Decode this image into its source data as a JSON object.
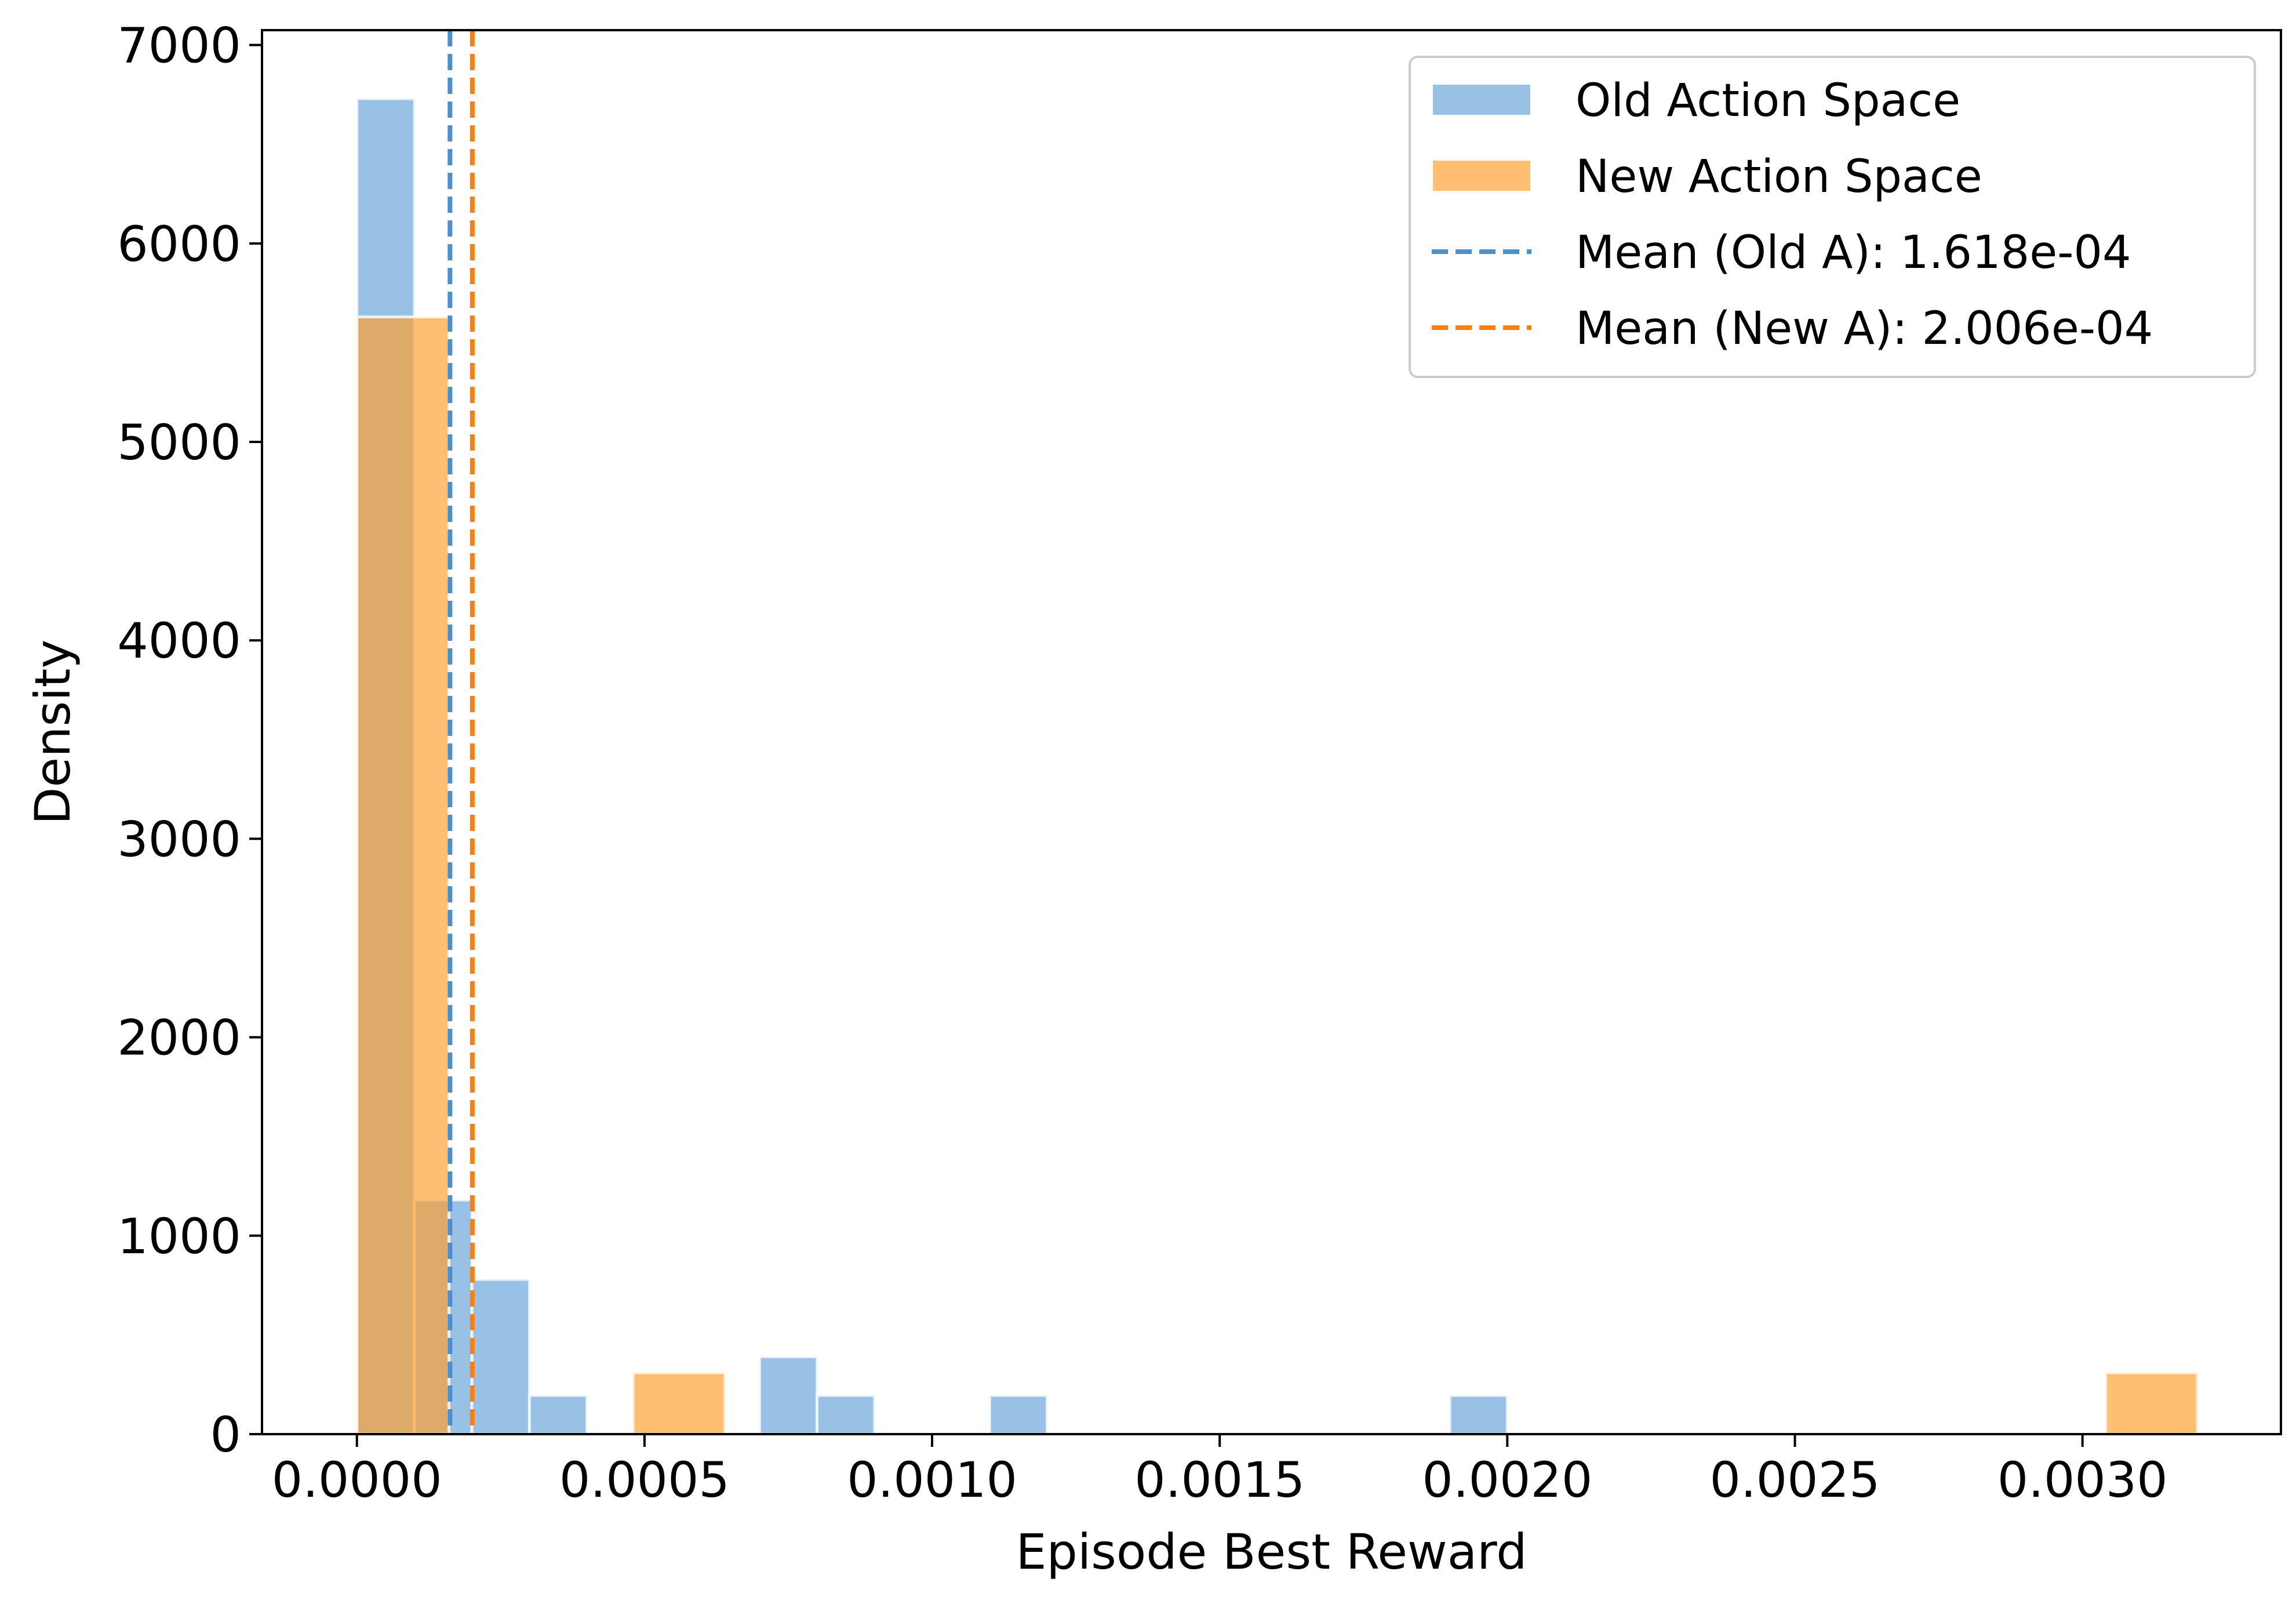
{
  "chart_data": {
    "type": "bar",
    "title": "",
    "xlabel": "Episode Best Reward",
    "ylabel": "Density",
    "xlim": [
      -0.000165,
      0.003345
    ],
    "ylim": [
      0,
      7075
    ],
    "xticks": [
      0.0,
      0.0005,
      0.001,
      0.0015,
      0.002,
      0.0025,
      0.003
    ],
    "xtick_labels": [
      "0.0000",
      "0.0005",
      "0.0010",
      "0.0015",
      "0.0020",
      "0.0025",
      "0.0030"
    ],
    "yticks": [
      0,
      1000,
      2000,
      3000,
      4000,
      5000,
      6000,
      7000
    ],
    "ytick_labels": [
      "0",
      "1000",
      "2000",
      "3000",
      "4000",
      "5000",
      "6000",
      "7000"
    ],
    "grid": false,
    "legend_position": "top-right",
    "series": [
      {
        "name": "Old Action Space",
        "color": "#5b9bd5",
        "bins": [
          {
            "x0": 0.0,
            "x1": 0.0001,
            "density": 6730
          },
          {
            "x0": 0.0001,
            "x1": 0.0002,
            "density": 1180
          },
          {
            "x0": 0.0002,
            "x1": 0.0003,
            "density": 780
          },
          {
            "x0": 0.0003,
            "x1": 0.0004,
            "density": 195
          },
          {
            "x0": 0.0007,
            "x1": 0.0008,
            "density": 390
          },
          {
            "x0": 0.0008,
            "x1": 0.0009,
            "density": 195
          },
          {
            "x0": 0.0011,
            "x1": 0.0012,
            "density": 195
          },
          {
            "x0": 0.0019,
            "x1": 0.002,
            "density": 195
          }
        ]
      },
      {
        "name": "New Action Space",
        "color": "#ff9f2e",
        "bins": [
          {
            "x0": 0.0,
            "x1": 0.00016,
            "density": 5630
          },
          {
            "x0": 0.00048,
            "x1": 0.00064,
            "density": 310
          },
          {
            "x0": 0.00304,
            "x1": 0.0032,
            "density": 310
          }
        ]
      }
    ],
    "mean_lines": [
      {
        "label": "Mean (Old A): 1.618e-04",
        "x": 0.0001618,
        "color": "#4a8fcf",
        "style": "dashed"
      },
      {
        "label": "Mean (New A): 2.006e-04",
        "x": 0.0002006,
        "color": "#ff7f0e",
        "style": "dashed"
      }
    ]
  }
}
